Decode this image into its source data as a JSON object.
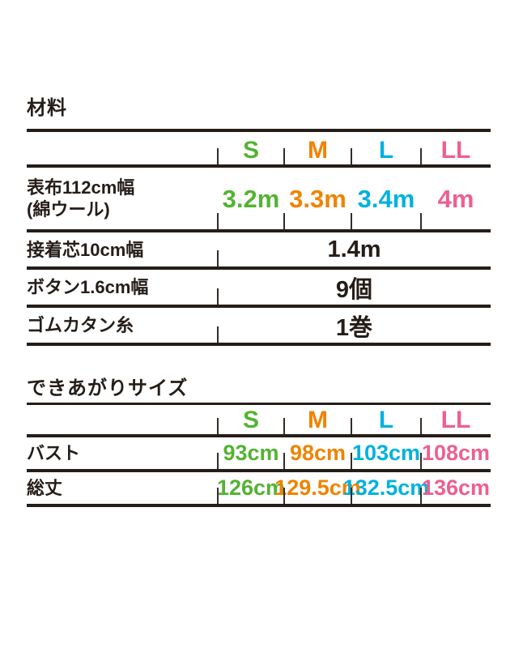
{
  "colors": {
    "s": "#54b332",
    "m": "#f08300",
    "l": "#00b1de",
    "ll": "#ec6090",
    "ink": "#251d18"
  },
  "materials": {
    "heading": "材料",
    "columns": {
      "s": "S",
      "m": "M",
      "l": "L",
      "ll": "LL"
    },
    "fabric_row": {
      "label_line1": "表布112cm幅",
      "label_line2": "(綿ウール)",
      "values": {
        "s": "3.2m",
        "m": "3.3m",
        "l": "3.4m",
        "ll": "4m"
      }
    },
    "interfacing_row": {
      "label": "接着芯10cm幅",
      "value": "1.4m"
    },
    "button_row": {
      "label": "ボタン1.6cm幅",
      "value": "9個"
    },
    "thread_row": {
      "label": "ゴムカタン糸",
      "value": "1巻"
    }
  },
  "finished_size": {
    "heading": "できあがりサイズ",
    "columns": {
      "s": "S",
      "m": "M",
      "l": "L",
      "ll": "LL"
    },
    "bust_row": {
      "label": "バスト",
      "values": {
        "s": "93cm",
        "m": "98cm",
        "l": "103cm",
        "ll": "108cm"
      }
    },
    "length_row": {
      "label": "総丈",
      "values": {
        "s": "126cm",
        "m": "129.5cm",
        "l": "132.5cm",
        "ll": "136cm"
      }
    }
  }
}
